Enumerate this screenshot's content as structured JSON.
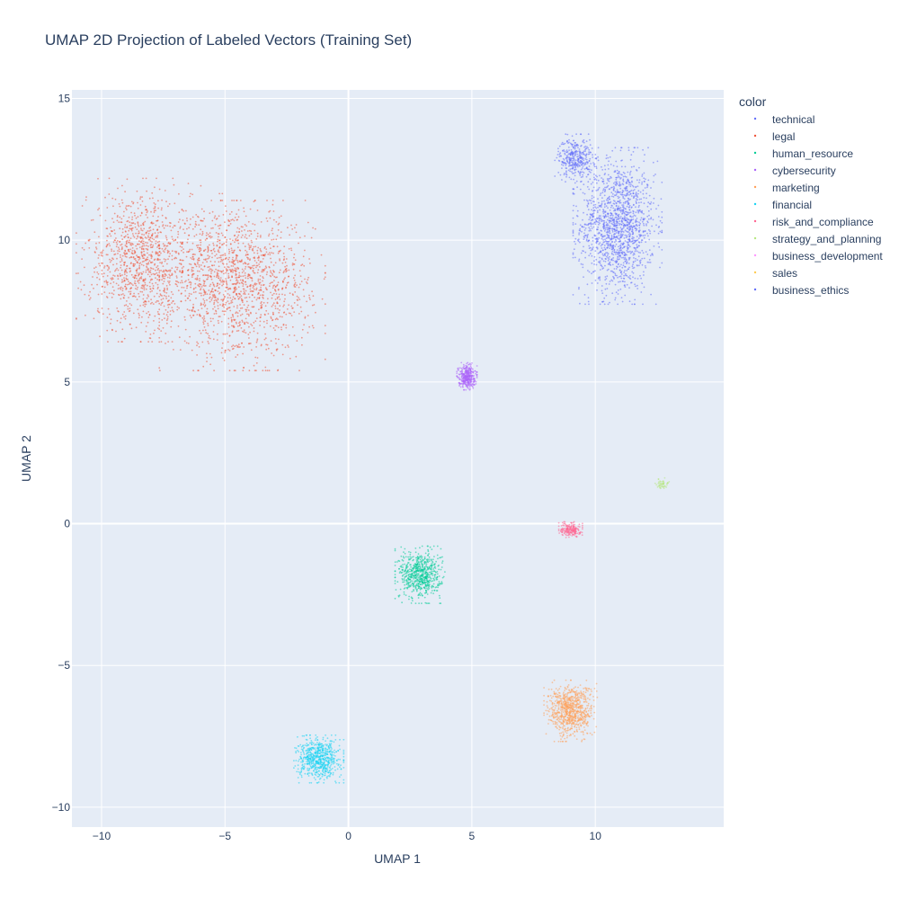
{
  "chart_data": {
    "type": "scatter",
    "title": "UMAP 2D Projection of Labeled Vectors (Training Set)",
    "xlabel": "UMAP 1",
    "ylabel": "UMAP 2",
    "xlim": [
      -11.2,
      15.2
    ],
    "ylim": [
      -10.7,
      15.3
    ],
    "x_ticks": [
      -10,
      -5,
      0,
      5,
      10
    ],
    "x_tick_labels": [
      "−10",
      "−5",
      "0",
      "5",
      "10"
    ],
    "y_ticks": [
      -10,
      -5,
      0,
      5,
      10,
      15
    ],
    "y_tick_labels": [
      "−10",
      "−5",
      "0",
      "5",
      "10",
      "15"
    ],
    "legend_title": "color",
    "legend_position": "top-right",
    "series": [
      {
        "name": "technical",
        "color": "#636efa",
        "clusters": [
          {
            "cx": 10.9,
            "cy": 10.5,
            "sx": 0.75,
            "sy": 1.15,
            "n": 1500
          },
          {
            "cx": 9.2,
            "cy": 12.9,
            "sx": 0.35,
            "sy": 0.35,
            "n": 350
          }
        ]
      },
      {
        "name": "legal",
        "color": "#ef553b",
        "clusters": [
          {
            "cx": -8.5,
            "cy": 9.3,
            "sx": 1.05,
            "sy": 1.2,
            "n": 950
          },
          {
            "cx": -4.3,
            "cy": 8.4,
            "sx": 1.4,
            "sy": 1.25,
            "n": 1250
          },
          {
            "cx": -6.2,
            "cy": 9.0,
            "sx": 1.4,
            "sy": 1.1,
            "n": 350
          }
        ]
      },
      {
        "name": "human_resource",
        "color": "#00cc96",
        "clusters": [
          {
            "cx": 2.9,
            "cy": -1.8,
            "sx": 0.42,
            "sy": 0.42,
            "n": 650
          }
        ]
      },
      {
        "name": "cybersecurity",
        "color": "#ab63fa",
        "clusters": [
          {
            "cx": 4.8,
            "cy": 5.2,
            "sx": 0.17,
            "sy": 0.2,
            "n": 350
          }
        ]
      },
      {
        "name": "marketing",
        "color": "#ffa15a",
        "clusters": [
          {
            "cx": 9.0,
            "cy": -6.6,
            "sx": 0.45,
            "sy": 0.45,
            "n": 800
          }
        ]
      },
      {
        "name": "financial",
        "color": "#19d3f3",
        "clusters": [
          {
            "cx": -1.2,
            "cy": -8.3,
            "sx": 0.42,
            "sy": 0.35,
            "n": 650
          }
        ]
      },
      {
        "name": "risk_and_compliance",
        "color": "#ff6692",
        "clusters": [
          {
            "cx": 9.0,
            "cy": -0.2,
            "sx": 0.2,
            "sy": 0.12,
            "n": 200
          }
        ]
      },
      {
        "name": "strategy_and_planning",
        "color": "#b6e880",
        "clusters": [
          {
            "cx": 12.7,
            "cy": 1.4,
            "sx": 0.12,
            "sy": 0.09,
            "n": 50
          }
        ]
      },
      {
        "name": "business_development",
        "color": "#ff97ff",
        "clusters": []
      },
      {
        "name": "sales",
        "color": "#fecb52",
        "clusters": []
      },
      {
        "name": "business_ethics",
        "color": "#636efa",
        "clusters": []
      }
    ]
  }
}
